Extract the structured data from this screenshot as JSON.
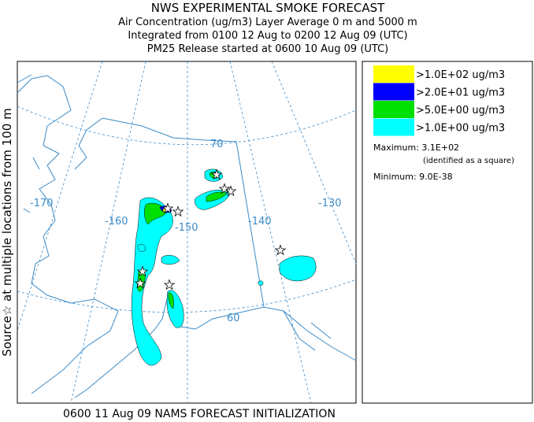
{
  "header": {
    "title": "NWS EXPERIMENTAL SMOKE FORECAST",
    "lines": [
      "Air Concentration (ug/m3) Layer Average    0 m and  5000 m",
      "Integrated from 0100 12 Aug to 0200 12 Aug 09 (UTC)",
      "PM25 Release started at 0600 10 Aug 09 (UTC)"
    ]
  },
  "side_label": "Source☆  at multiple locations  from  100 m",
  "map": {
    "labels": [
      "70",
      "-170",
      "-160",
      "-150",
      "-140",
      "-130",
      "60"
    ]
  },
  "legend": {
    "items": [
      {
        "label": ">1.0E+02 ug/m3",
        "color": "#ffff00"
      },
      {
        "label": ">2.0E+01 ug/m3",
        "color": "#0000ff"
      },
      {
        "label": ">5.0E+00 ug/m3",
        "color": "#00e000"
      },
      {
        "label": ">1.0E+00 ug/m3",
        "color": "#00ffff"
      }
    ],
    "maximum": "Maximum: 3.1E+02",
    "maximum_note": "(identified as a square)",
    "minimum": "Minimum: 9.0E-38"
  },
  "footer": "0600 11 Aug 09 NAMS FORECAST INITIALIZATION"
}
